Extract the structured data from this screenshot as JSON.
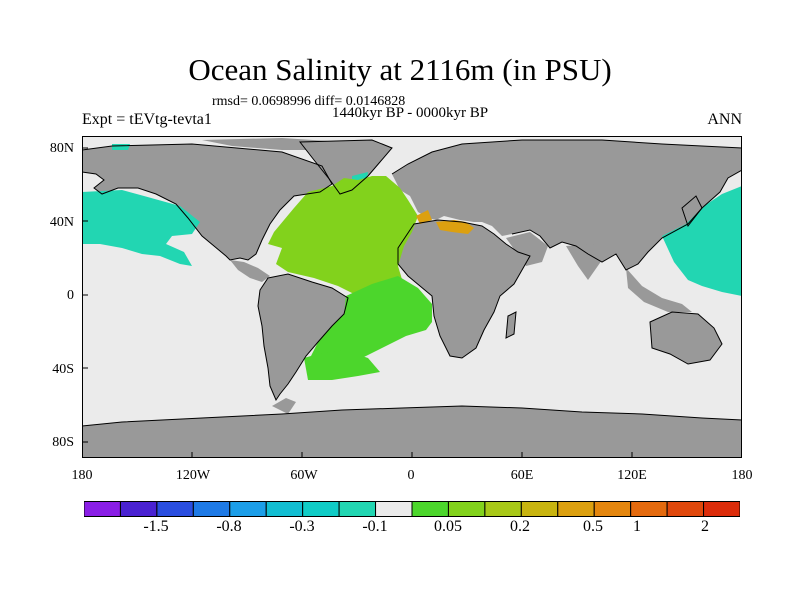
{
  "title": "Ocean Salinity at 2116m (in PSU)",
  "stats": "rmsd= 0.0698996 diff= 0.0146828",
  "period": "1440kyr BP - 0000kyr BP",
  "experiment": "Expt = tEVtg-tevta1",
  "season": "ANN",
  "lat_ticks": [
    "80N",
    "40N",
    "0",
    "40S",
    "80S"
  ],
  "lon_ticks": [
    "180",
    "120W",
    "60W",
    "0",
    "60E",
    "120E",
    "180"
  ],
  "colorbar": {
    "labels": [
      "-1.5",
      "-0.8",
      "-0.3",
      "-0.1",
      "0.05",
      "0.2",
      "0.5",
      "1",
      "2"
    ],
    "colors": [
      "#8a1ee6",
      "#4a22d2",
      "#2a4ee0",
      "#1e7ae6",
      "#1c9ee8",
      "#12bed2",
      "#10ccc6",
      "#22d6b2",
      "#ebebeb",
      "#4cd62c",
      "#82d21c",
      "#a8c818",
      "#c8b410",
      "#dca010",
      "#e4860e",
      "#e46a0e",
      "#e0480c",
      "#dc2c0a"
    ]
  },
  "colors": {
    "land": "#999999",
    "ocean_near_zero": "#ebebeb",
    "negative_anomaly": "#22d6b2",
    "positive_anomaly_light": "#82d21c",
    "positive_anomaly": "#4cd62c",
    "mediterranean": "#dca010"
  }
}
